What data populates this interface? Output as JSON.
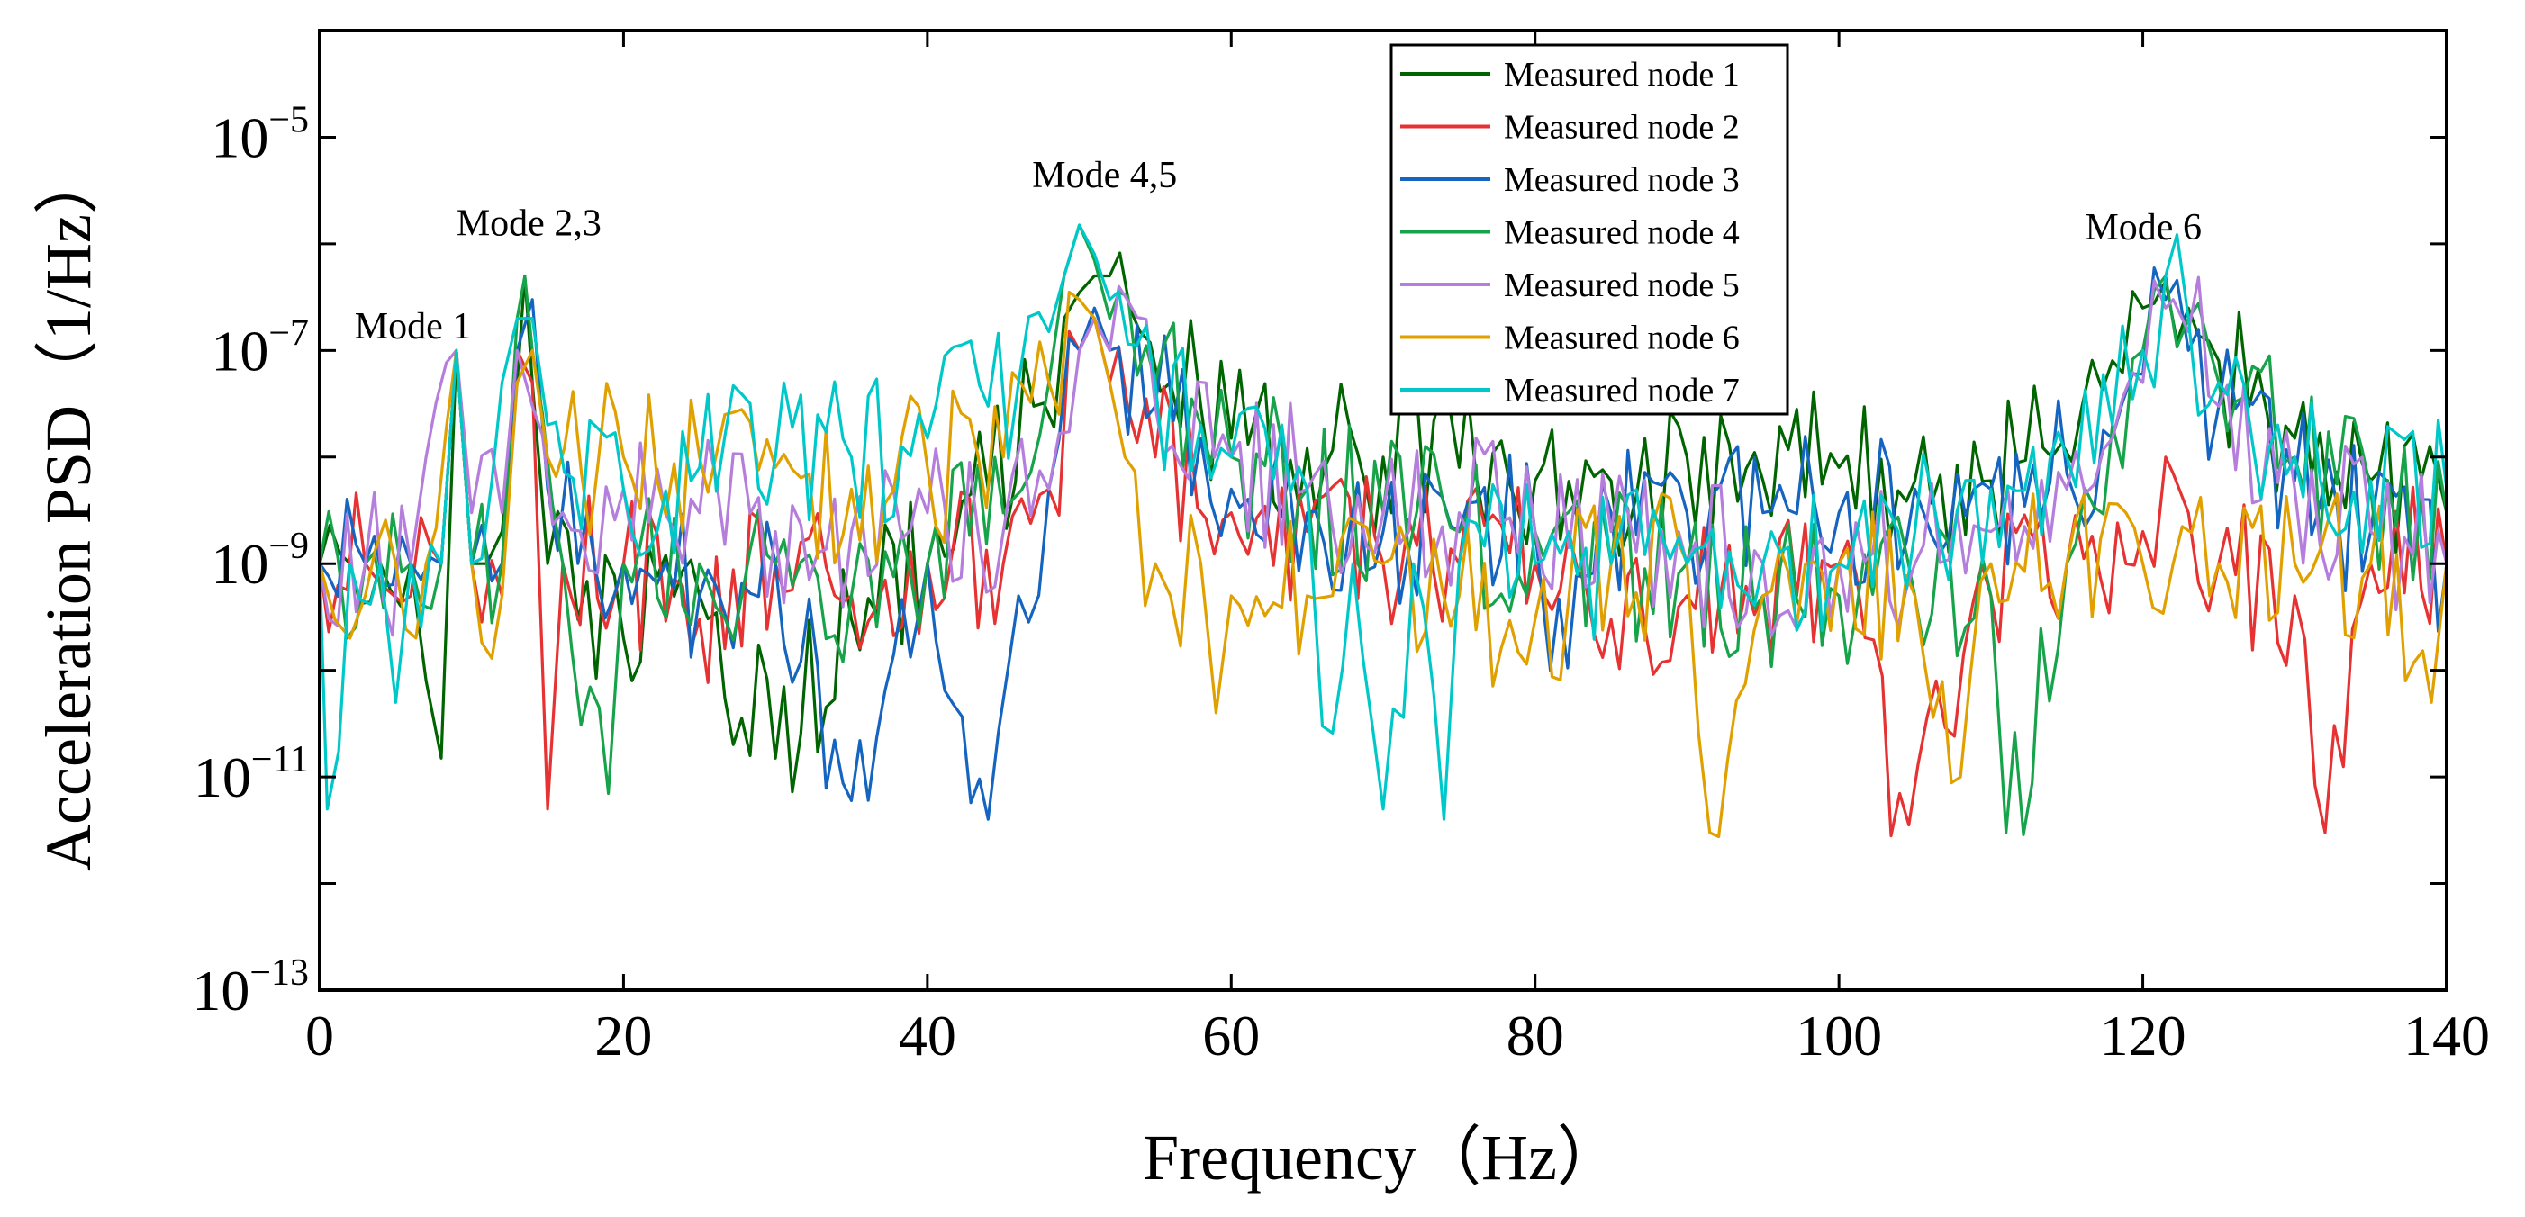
{
  "chart_data": {
    "type": "line",
    "title": "",
    "xlabel": "Frequency（Hz）",
    "ylabel": "Acceleration PSD（1/Hz）",
    "xlim": [
      0,
      140
    ],
    "ylim": [
      1e-13,
      0.0001
    ],
    "yscale": "log",
    "grid": false,
    "legend_position": "top-center",
    "x_ticks": [
      0,
      20,
      40,
      60,
      80,
      100,
      120,
      140
    ],
    "x_tick_labels": [
      "0",
      "20",
      "40",
      "60",
      "80",
      "100",
      "120",
      "140"
    ],
    "y_ticks": [
      1e-13,
      1e-11,
      1e-09,
      1e-07,
      1e-05
    ],
    "y_tick_labels": [
      {
        "base": "10",
        "exp": "−13"
      },
      {
        "base": "10",
        "exp": "−11"
      },
      {
        "base": "10",
        "exp": "−9"
      },
      {
        "base": "10",
        "exp": "−7"
      },
      {
        "base": "10",
        "exp": "−5"
      }
    ],
    "annotations": [
      {
        "text": "Mode 1",
        "x": 2.3,
        "y": 1.3e-07
      },
      {
        "text": "Mode 2,3",
        "x": 9.0,
        "y": 1.2e-06
      },
      {
        "text": "Mode 4,5",
        "x": 46.9,
        "y": 3.4e-06
      },
      {
        "text": "Mode 6",
        "x": 116.2,
        "y": 1.1e-06
      }
    ],
    "series": [
      {
        "name": "Measured node 1",
        "color": "#006400",
        "x": [
          0,
          2,
          4,
          6,
          7,
          8,
          9,
          10,
          11,
          12,
          13,
          13.5,
          14,
          15,
          17,
          20,
          25,
          30,
          35,
          40,
          44,
          47,
          49,
          50,
          51,
          52,
          54,
          56,
          58,
          60,
          65,
          70,
          75,
          80,
          85,
          90,
          95,
          100,
          105,
          110,
          114,
          116,
          118,
          120,
          121.5,
          123,
          125,
          127,
          130,
          135,
          140
        ],
        "y": [
          1e-09,
          1e-09,
          1e-09,
          1e-09,
          8e-11,
          1.5e-11,
          1e-07,
          1e-09,
          1e-09,
          2e-09,
          5e-08,
          5e-07,
          5e-08,
          1e-09,
          3e-10,
          2e-10,
          5e-10,
          1.5e-11,
          3e-10,
          1e-09,
          5e-09,
          3e-08,
          2e-07,
          3.5e-07,
          5e-07,
          5e-07,
          1.5e-07,
          5e-08,
          3e-08,
          1.5e-08,
          1.2e-08,
          1e-08,
          8e-09,
          6e-09,
          6e-09,
          1e-08,
          6e-09,
          8e-09,
          6e-09,
          6e-09,
          1e-08,
          3e-08,
          8e-08,
          2.5e-07,
          4.5e-07,
          2.5e-07,
          8e-08,
          3e-08,
          1.5e-08,
          6e-09,
          3e-09
        ]
      },
      {
        "name": "Measured node 2",
        "color": "#e63232",
        "x": [
          0,
          3,
          6,
          8,
          9,
          10,
          12,
          13,
          14,
          15,
          16,
          20,
          25,
          30,
          35,
          40,
          45,
          48,
          50,
          51,
          52,
          55,
          60,
          65,
          70,
          75,
          80,
          85,
          90,
          95,
          100,
          104,
          110,
          115,
          120,
          121.5,
          122,
          123,
          125,
          130,
          132,
          135,
          140
        ],
        "y": [
          1e-09,
          1e-09,
          5e-10,
          1e-09,
          1e-07,
          1e-09,
          5e-10,
          1e-07,
          5e-08,
          5e-12,
          1e-09,
          1e-09,
          3e-10,
          1e-09,
          5e-10,
          1e-09,
          1e-09,
          5e-09,
          1e-07,
          2e-07,
          5e-08,
          1e-08,
          3e-09,
          2e-09,
          1e-09,
          1e-09,
          1e-09,
          3e-10,
          5e-10,
          5e-10,
          1e-09,
          7e-12,
          5e-10,
          1e-09,
          2e-09,
          1e-08,
          7e-09,
          3e-09,
          1e-09,
          5e-10,
          3e-12,
          1e-09,
          1e-09
        ]
      },
      {
        "name": "Measured node 3",
        "color": "#1565c0",
        "x": [
          0,
          3,
          6,
          8,
          9,
          10,
          12,
          13,
          14,
          15,
          17,
          20,
          25,
          30,
          35,
          40,
          44,
          46,
          48,
          50,
          51,
          52,
          55,
          58,
          60,
          65,
          70,
          75,
          80,
          81,
          85,
          90,
          95,
          100,
          105,
          110,
          115,
          118,
          120,
          121.5,
          123,
          125,
          130,
          135,
          140
        ],
        "y": [
          1e-09,
          1e-09,
          1e-09,
          1e-09,
          1e-07,
          1e-09,
          1e-09,
          1e-07,
          3e-07,
          5e-09,
          1e-09,
          1e-09,
          5e-10,
          1e-09,
          6e-12,
          1e-09,
          4e-12,
          5e-10,
          5e-09,
          1e-07,
          2.5e-07,
          1e-07,
          3e-08,
          1.5e-08,
          5e-09,
          3e-09,
          2e-09,
          2e-09,
          2e-09,
          1e-10,
          3e-09,
          3e-09,
          3e-09,
          3e-09,
          5e-09,
          5e-09,
          7e-09,
          1.5e-08,
          6e-08,
          3e-07,
          1e-07,
          3e-08,
          6e-09,
          2e-09,
          1e-09
        ]
      },
      {
        "name": "Measured node 4",
        "color": "#16a34a",
        "x": [
          0,
          3,
          6,
          8,
          9,
          10,
          12,
          13,
          13.5,
          14,
          16,
          19,
          20,
          25,
          30,
          35,
          40,
          45,
          48,
          49,
          50,
          51,
          52,
          55,
          58,
          60,
          65,
          70,
          75,
          80,
          85,
          90,
          95,
          100,
          105,
          110,
          111,
          115,
          118,
          120,
          121.5,
          123,
          125,
          130,
          135,
          140
        ],
        "y": [
          1e-09,
          1e-09,
          1e-09,
          1e-09,
          1e-07,
          1e-09,
          1e-09,
          2e-07,
          5e-07,
          1e-07,
          1e-09,
          7e-12,
          1e-09,
          1e-09,
          1e-09,
          5e-10,
          1e-09,
          3e-09,
          5e-08,
          5e-07,
          1.5e-06,
          7e-07,
          2e-07,
          5e-08,
          2e-08,
          1e-08,
          5e-09,
          3e-09,
          2e-09,
          2e-09,
          1e-09,
          1e-09,
          5e-10,
          5e-10,
          5e-10,
          5e-10,
          3e-12,
          1e-09,
          2e-08,
          1e-07,
          5e-07,
          2e-07,
          5e-08,
          1e-08,
          5e-09,
          3e-09
        ]
      },
      {
        "name": "Measured node 5",
        "color": "#b57edc",
        "x": [
          0,
          3,
          6,
          7,
          9,
          10,
          12,
          13,
          14,
          16,
          20,
          25,
          30,
          35,
          40,
          45,
          48,
          50,
          51,
          52,
          55,
          60,
          65,
          70,
          75,
          80,
          85,
          90,
          95,
          100,
          105,
          110,
          115,
          118,
          120,
          121.5,
          122,
          123,
          125,
          130,
          135,
          140
        ],
        "y": [
          1e-09,
          1e-09,
          1e-09,
          1e-08,
          1e-07,
          3e-09,
          3e-09,
          1e-07,
          3e-08,
          3e-09,
          5e-09,
          3e-09,
          2e-09,
          2e-09,
          3e-09,
          2e-09,
          5e-09,
          1e-07,
          2e-07,
          1e-07,
          3e-08,
          1e-08,
          5e-09,
          3e-09,
          3e-09,
          2e-09,
          2e-09,
          1e-09,
          1e-09,
          1e-09,
          1e-09,
          2e-09,
          5e-09,
          1.5e-08,
          5e-08,
          2.5e-07,
          3e-07,
          1.5e-07,
          3e-08,
          5e-09,
          2e-09,
          1e-09
        ]
      },
      {
        "name": "Measured node 6",
        "color": "#e0a000",
        "x": [
          0,
          1,
          2,
          3,
          5,
          7,
          9,
          10,
          12,
          13,
          14,
          15,
          20,
          25,
          30,
          35,
          40,
          45,
          48,
          50,
          51,
          52,
          53,
          55,
          56,
          58,
          59,
          60,
          65,
          70,
          75,
          80,
          85,
          90,
          91.5,
          95,
          100,
          105,
          108,
          110,
          115,
          120,
          122,
          125,
          130,
          135,
          139,
          140
        ],
        "y": [
          1e-09,
          3e-10,
          2e-10,
          5e-10,
          1e-09,
          1e-09,
          1e-07,
          1e-09,
          5e-10,
          5e-08,
          1e-07,
          1e-08,
          1e-08,
          1e-08,
          8e-09,
          5e-09,
          8e-09,
          1e-08,
          5e-08,
          3e-07,
          2e-07,
          5e-08,
          1e-08,
          1e-09,
          5e-10,
          1e-09,
          4e-11,
          5e-10,
          5e-10,
          1e-09,
          5e-10,
          3e-10,
          1e-09,
          1e-09,
          3e-12,
          5e-10,
          1e-09,
          5e-10,
          1e-11,
          1e-09,
          1e-09,
          1e-09,
          1e-09,
          1e-09,
          1e-09,
          1e-09,
          5e-11,
          1e-09
        ]
      },
      {
        "name": "Measured node 7",
        "color": "#00c8c8",
        "x": [
          0,
          0.5,
          2,
          4,
          5,
          6,
          8,
          9,
          10,
          12,
          13,
          14,
          15,
          20,
          25,
          30,
          35,
          40,
          44,
          46,
          48,
          49,
          50,
          51,
          52,
          55,
          58,
          60,
          65,
          66,
          68,
          70,
          72,
          74,
          75,
          80,
          85,
          90,
          95,
          100,
          105,
          110,
          115,
          118,
          120,
          121.5,
          123,
          125,
          130,
          135,
          140
        ],
        "y": [
          1e-09,
          5e-12,
          1e-09,
          1e-09,
          5e-11,
          1e-09,
          1e-09,
          1e-07,
          1e-09,
          5e-08,
          2e-07,
          2e-07,
          2e-08,
          5e-09,
          8e-09,
          1e-08,
          1e-08,
          1.5e-08,
          3e-08,
          5e-08,
          1.5e-07,
          5e-07,
          1.5e-06,
          8e-07,
          3e-07,
          5e-08,
          2e-08,
          1e-08,
          5e-09,
          3e-11,
          1e-09,
          5e-12,
          1e-09,
          4e-12,
          1e-09,
          1e-09,
          1e-09,
          1e-09,
          1e-09,
          1e-09,
          2e-09,
          5e-09,
          1e-08,
          2e-08,
          1e-07,
          5e-07,
          2e-07,
          5e-08,
          1e-08,
          6e-09,
          5e-09
        ]
      }
    ]
  }
}
